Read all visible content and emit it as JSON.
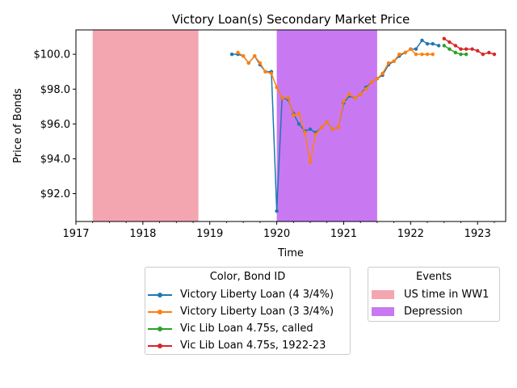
{
  "chart_data": {
    "type": "line",
    "title": "Victory Loan(s) Secondary Market Price",
    "xlabel": "Time",
    "ylabel": "Price of Bonds",
    "xlim": [
      1917.0,
      1923.42
    ],
    "ylim": [
      90.4,
      101.4
    ],
    "x_ticks": [
      1917,
      1918,
      1919,
      1920,
      1921,
      1922,
      1923
    ],
    "y_ticks": [
      92,
      94,
      96,
      98,
      100
    ],
    "y_tick_labels": [
      "$92.0",
      "$94.0",
      "$96.0",
      "$98.0",
      "$100.0"
    ],
    "grid": false,
    "spans": [
      {
        "name": "US time in WW1",
        "start": 1917.25,
        "end": 1918.83,
        "color": "#f4a6b0"
      },
      {
        "name": "Depression",
        "start": 1920.0,
        "end": 1921.5,
        "color": "#c879f2"
      }
    ],
    "series": [
      {
        "name": "Victory Liberty Loan (4 3/4%)",
        "color": "#1f77b4",
        "x": [
          1919.33,
          1919.42,
          1919.5,
          1919.58,
          1919.67,
          1919.75,
          1919.83,
          1919.92,
          1920.0,
          1920.08,
          1920.17,
          1920.25,
          1920.33,
          1920.42,
          1920.5,
          1920.58,
          1920.67,
          1920.75,
          1920.83,
          1920.92,
          1921.0,
          1921.08,
          1921.17,
          1921.25,
          1921.33,
          1921.42,
          1921.5,
          1921.58,
          1921.67,
          1921.75,
          1921.83,
          1921.92,
          1922.0,
          1922.08,
          1922.17,
          1922.25,
          1922.33,
          1922.42
        ],
        "y": [
          100.0,
          100.0,
          99.9,
          99.5,
          99.9,
          99.4,
          99.0,
          99.0,
          91.0,
          97.5,
          97.4,
          96.6,
          96.0,
          95.6,
          95.7,
          95.5,
          95.8,
          96.1,
          95.7,
          95.8,
          97.2,
          97.6,
          97.5,
          97.7,
          98.1,
          98.4,
          98.6,
          98.8,
          99.4,
          99.6,
          99.9,
          100.1,
          100.3,
          100.3,
          100.8,
          100.6,
          100.6,
          100.5
        ]
      },
      {
        "name": "Victory Liberty Loan (3 3/4%)",
        "color": "#ff7f0e",
        "x": [
          1919.42,
          1919.5,
          1919.58,
          1919.67,
          1919.75,
          1919.83,
          1919.92,
          1920.0,
          1920.08,
          1920.17,
          1920.25,
          1920.33,
          1920.42,
          1920.5,
          1920.58,
          1920.67,
          1920.75,
          1920.83,
          1920.92,
          1921.0,
          1921.08,
          1921.17,
          1921.25,
          1921.33,
          1921.42,
          1921.5,
          1921.58,
          1921.67,
          1921.75,
          1921.83,
          1921.92,
          1922.0,
          1922.08,
          1922.17,
          1922.25,
          1922.33
        ],
        "y": [
          100.1,
          99.9,
          99.5,
          99.9,
          99.5,
          99.0,
          98.9,
          98.1,
          97.5,
          97.5,
          96.5,
          96.6,
          95.5,
          93.8,
          95.4,
          95.8,
          96.1,
          95.7,
          95.8,
          97.3,
          97.7,
          97.5,
          97.7,
          98.0,
          98.4,
          98.6,
          98.9,
          99.5,
          99.6,
          100.0,
          100.1,
          100.3,
          100.0,
          100.0,
          100.0,
          100.0
        ]
      },
      {
        "name": "Vic Lib Loan 4.75s, called",
        "color": "#2ca02c",
        "x": [
          1922.5,
          1922.58,
          1922.67,
          1922.75,
          1922.83
        ],
        "y": [
          100.5,
          100.3,
          100.1,
          100.0,
          100.0
        ]
      },
      {
        "name": "Vic Lib Loan 4.75s, 1922-23",
        "color": "#d62728",
        "x": [
          1922.5,
          1922.58,
          1922.67,
          1922.75,
          1922.83,
          1922.92,
          1923.0,
          1923.08,
          1923.17,
          1923.25
        ],
        "y": [
          100.9,
          100.7,
          100.5,
          100.3,
          100.3,
          100.3,
          100.2,
          100.0,
          100.1,
          100.0
        ]
      }
    ],
    "legend_series_title": "Color, Bond ID",
    "legend_events_title": "Events",
    "legend_placement": "bottom"
  }
}
